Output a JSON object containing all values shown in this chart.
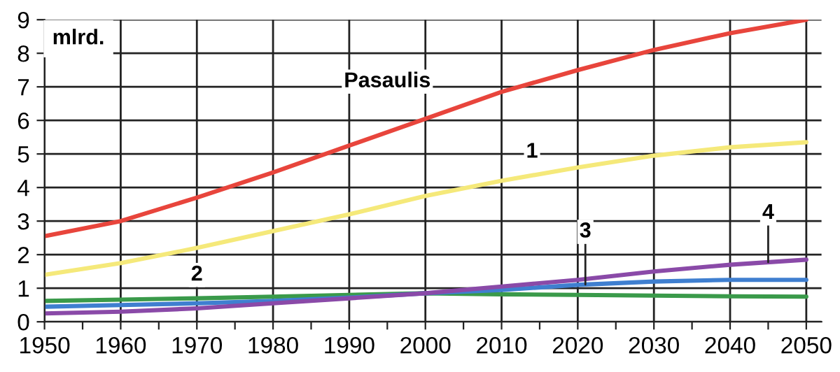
{
  "chart_data": {
    "type": "line",
    "ylabel": "mlrd.",
    "x": [
      1950,
      1960,
      1970,
      1980,
      1990,
      2000,
      2010,
      2020,
      2030,
      2040,
      2050
    ],
    "series": [
      {
        "name": "Pasaulis",
        "color": "#e8453c",
        "values": [
          2.55,
          3.0,
          3.7,
          4.45,
          5.25,
          6.05,
          6.85,
          7.5,
          8.1,
          8.6,
          9.0
        ]
      },
      {
        "name": "1",
        "color": "#f5e97a",
        "values": [
          1.4,
          1.75,
          2.2,
          2.7,
          3.2,
          3.75,
          4.2,
          4.6,
          4.95,
          5.2,
          5.35
        ]
      },
      {
        "name": "2",
        "color": "#3a9a4a",
        "values": [
          0.62,
          0.66,
          0.7,
          0.75,
          0.8,
          0.85,
          0.82,
          0.8,
          0.78,
          0.76,
          0.75
        ]
      },
      {
        "name": "3",
        "color": "#3f7fd0",
        "values": [
          0.45,
          0.5,
          0.55,
          0.62,
          0.72,
          0.85,
          0.95,
          1.1,
          1.2,
          1.25,
          1.25
        ]
      },
      {
        "name": "4",
        "color": "#8a4aa8",
        "values": [
          0.25,
          0.3,
          0.4,
          0.55,
          0.7,
          0.85,
          1.05,
          1.25,
          1.5,
          1.7,
          1.85
        ]
      }
    ],
    "xlim": [
      1950,
      2052
    ],
    "ylim": [
      0,
      9
    ],
    "xticks": [
      1950,
      {
        "value": 1955,
        "label": null
      },
      1960,
      {
        "value": 1965,
        "label": null
      },
      1970,
      {
        "value": 1975,
        "label": null
      },
      1980,
      {
        "value": 1985,
        "label": null
      },
      1990,
      {
        "value": 1995,
        "label": null
      },
      2000,
      {
        "value": 2005,
        "label": null
      },
      2010,
      {
        "value": 2015,
        "label": null
      },
      2020,
      {
        "value": 2025,
        "label": null
      },
      2030,
      {
        "value": 2035,
        "label": null
      },
      2040,
      {
        "value": 2045,
        "label": null
      },
      2050
    ],
    "yticks": [
      0,
      1,
      2,
      3,
      4,
      5,
      6,
      7,
      8,
      9
    ],
    "grid": true,
    "legend": false,
    "marker": "none",
    "line_style": "solid"
  }
}
